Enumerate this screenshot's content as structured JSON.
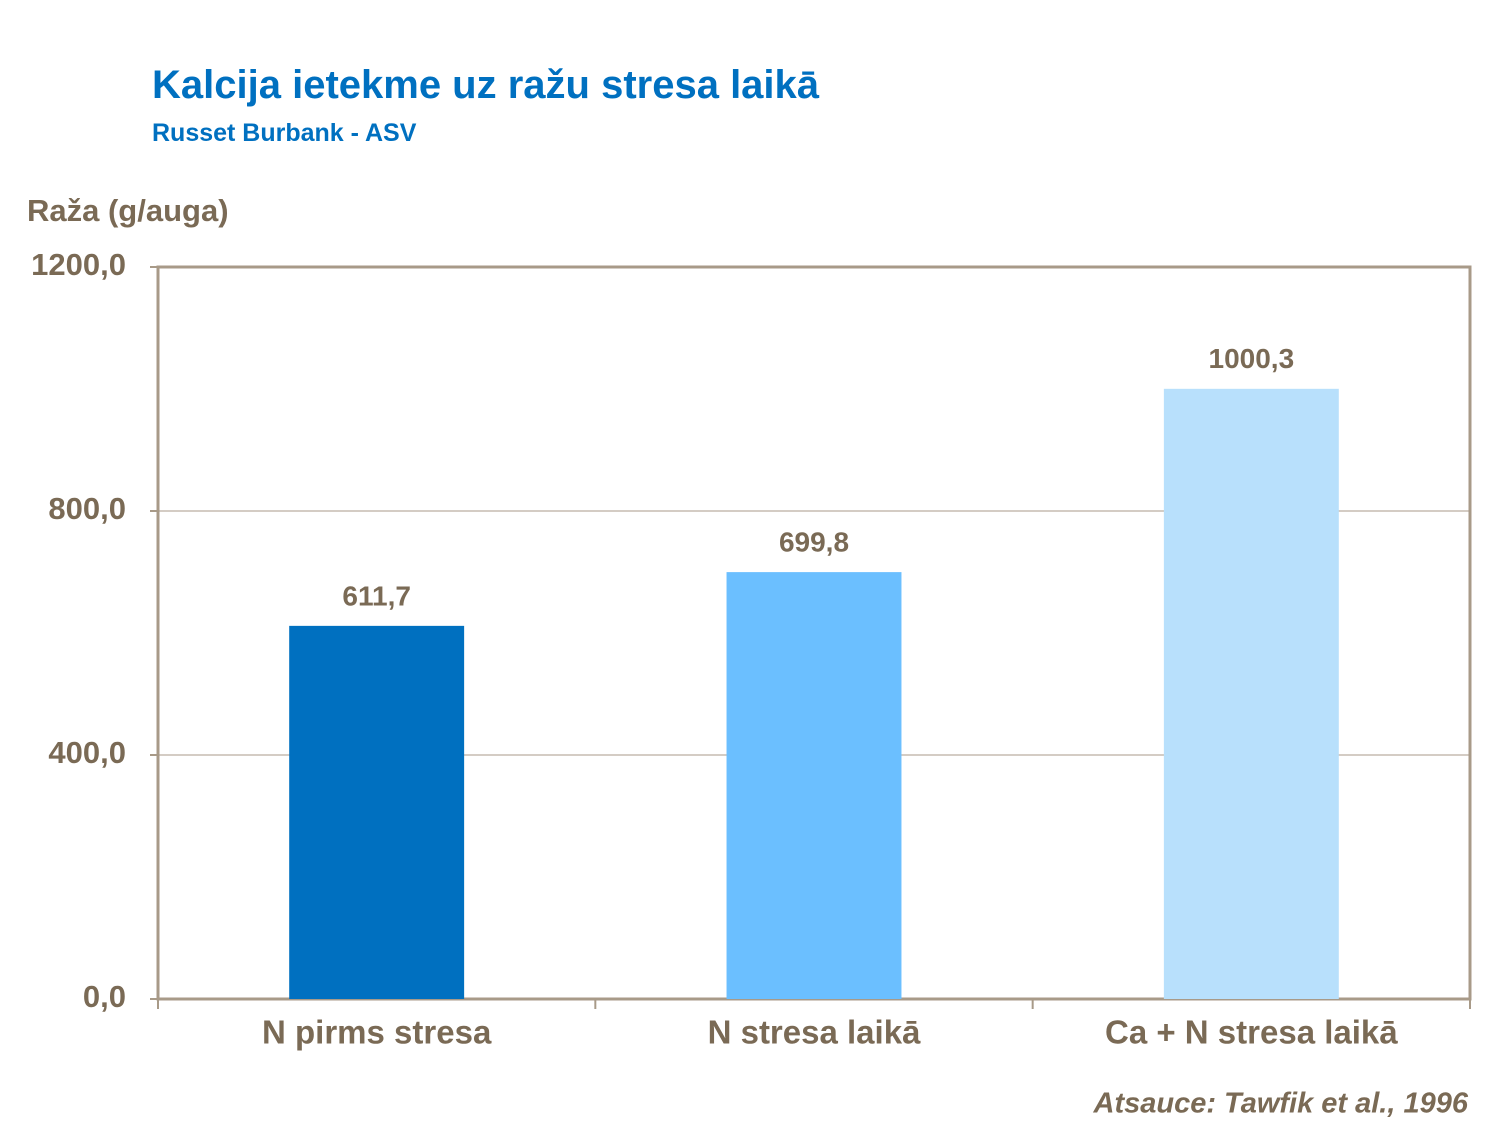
{
  "chart_data": {
    "type": "bar",
    "title": "Kalcija ietekme uz ražu stresa laikā",
    "subtitle": "Russet Burbank  - ASV",
    "y_label": "Raža (g/auga)",
    "source": "Atsauce: Tawfik et al., 1996",
    "categories": [
      "N pirms stresa",
      "N stresa laikā",
      "Ca + N stresa laikā"
    ],
    "values": [
      611.7,
      699.8,
      1000.3
    ],
    "value_labels": [
      "611,7",
      "699,8",
      "1000,3"
    ],
    "colors": [
      "#0070c0",
      "#6bbfff",
      "#b8e0fc"
    ],
    "ylim": [
      0,
      1200
    ],
    "yticks": [
      {
        "value": 0,
        "label": "0,0"
      },
      {
        "value": 400,
        "label": "400,0"
      },
      {
        "value": 800,
        "label": "800,0"
      },
      {
        "value": 1200,
        "label": "1200,0"
      }
    ],
    "grid": true
  }
}
